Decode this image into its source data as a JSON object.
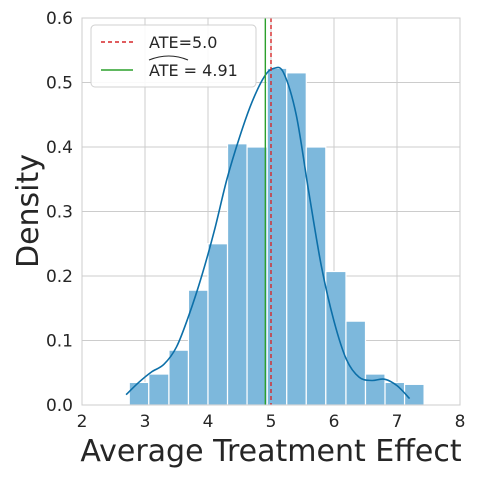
{
  "chart_data": {
    "type": "bar",
    "xlabel": "Average Treatment Effect",
    "ylabel": "Density",
    "xlim": [
      2,
      8
    ],
    "ylim": [
      0,
      0.6
    ],
    "xticks": [
      "2",
      "3",
      "4",
      "5",
      "6",
      "7",
      "8"
    ],
    "yticks": [
      "0.0",
      "0.1",
      "0.2",
      "0.3",
      "0.4",
      "0.5",
      "0.6"
    ],
    "grid": true,
    "legend_position": "top-left",
    "histogram": {
      "bin_edges": [
        2.75,
        3.06,
        3.38,
        3.69,
        4.0,
        4.31,
        4.62,
        4.94,
        5.25,
        5.56,
        5.87,
        6.19,
        6.5,
        6.81,
        7.12
      ],
      "density": [
        0.035,
        0.048,
        0.085,
        0.178,
        0.25,
        0.405,
        0.4,
        0.522,
        0.515,
        0.4,
        0.207,
        0.13,
        0.048,
        0.035,
        0.032
      ],
      "color": "#7db8dc"
    },
    "kde": {
      "x": [
        2.7,
        2.9,
        3.1,
        3.3,
        3.5,
        3.7,
        3.9,
        4.1,
        4.3,
        4.5,
        4.7,
        4.9,
        5.05,
        5.2,
        5.4,
        5.6,
        5.8,
        6.0,
        6.2,
        6.4,
        6.6,
        6.8,
        7.0,
        7.2
      ],
      "y": [
        0.016,
        0.035,
        0.051,
        0.063,
        0.09,
        0.14,
        0.2,
        0.27,
        0.35,
        0.415,
        0.47,
        0.51,
        0.522,
        0.515,
        0.45,
        0.33,
        0.215,
        0.13,
        0.07,
        0.043,
        0.038,
        0.04,
        0.03,
        0.01
      ],
      "color": "#0c6fa8"
    },
    "reference_lines": [
      {
        "x": 5.0,
        "color": "#d62728",
        "dash": true
      },
      {
        "x": 4.91,
        "color": "#2ca02c",
        "dash": false
      }
    ],
    "legend": [
      {
        "label": "ATE=5.0",
        "color": "#d62728",
        "dash": true
      },
      {
        "label": "ATE^ = 4.91",
        "color": "#2ca02c",
        "dash": false
      }
    ]
  }
}
